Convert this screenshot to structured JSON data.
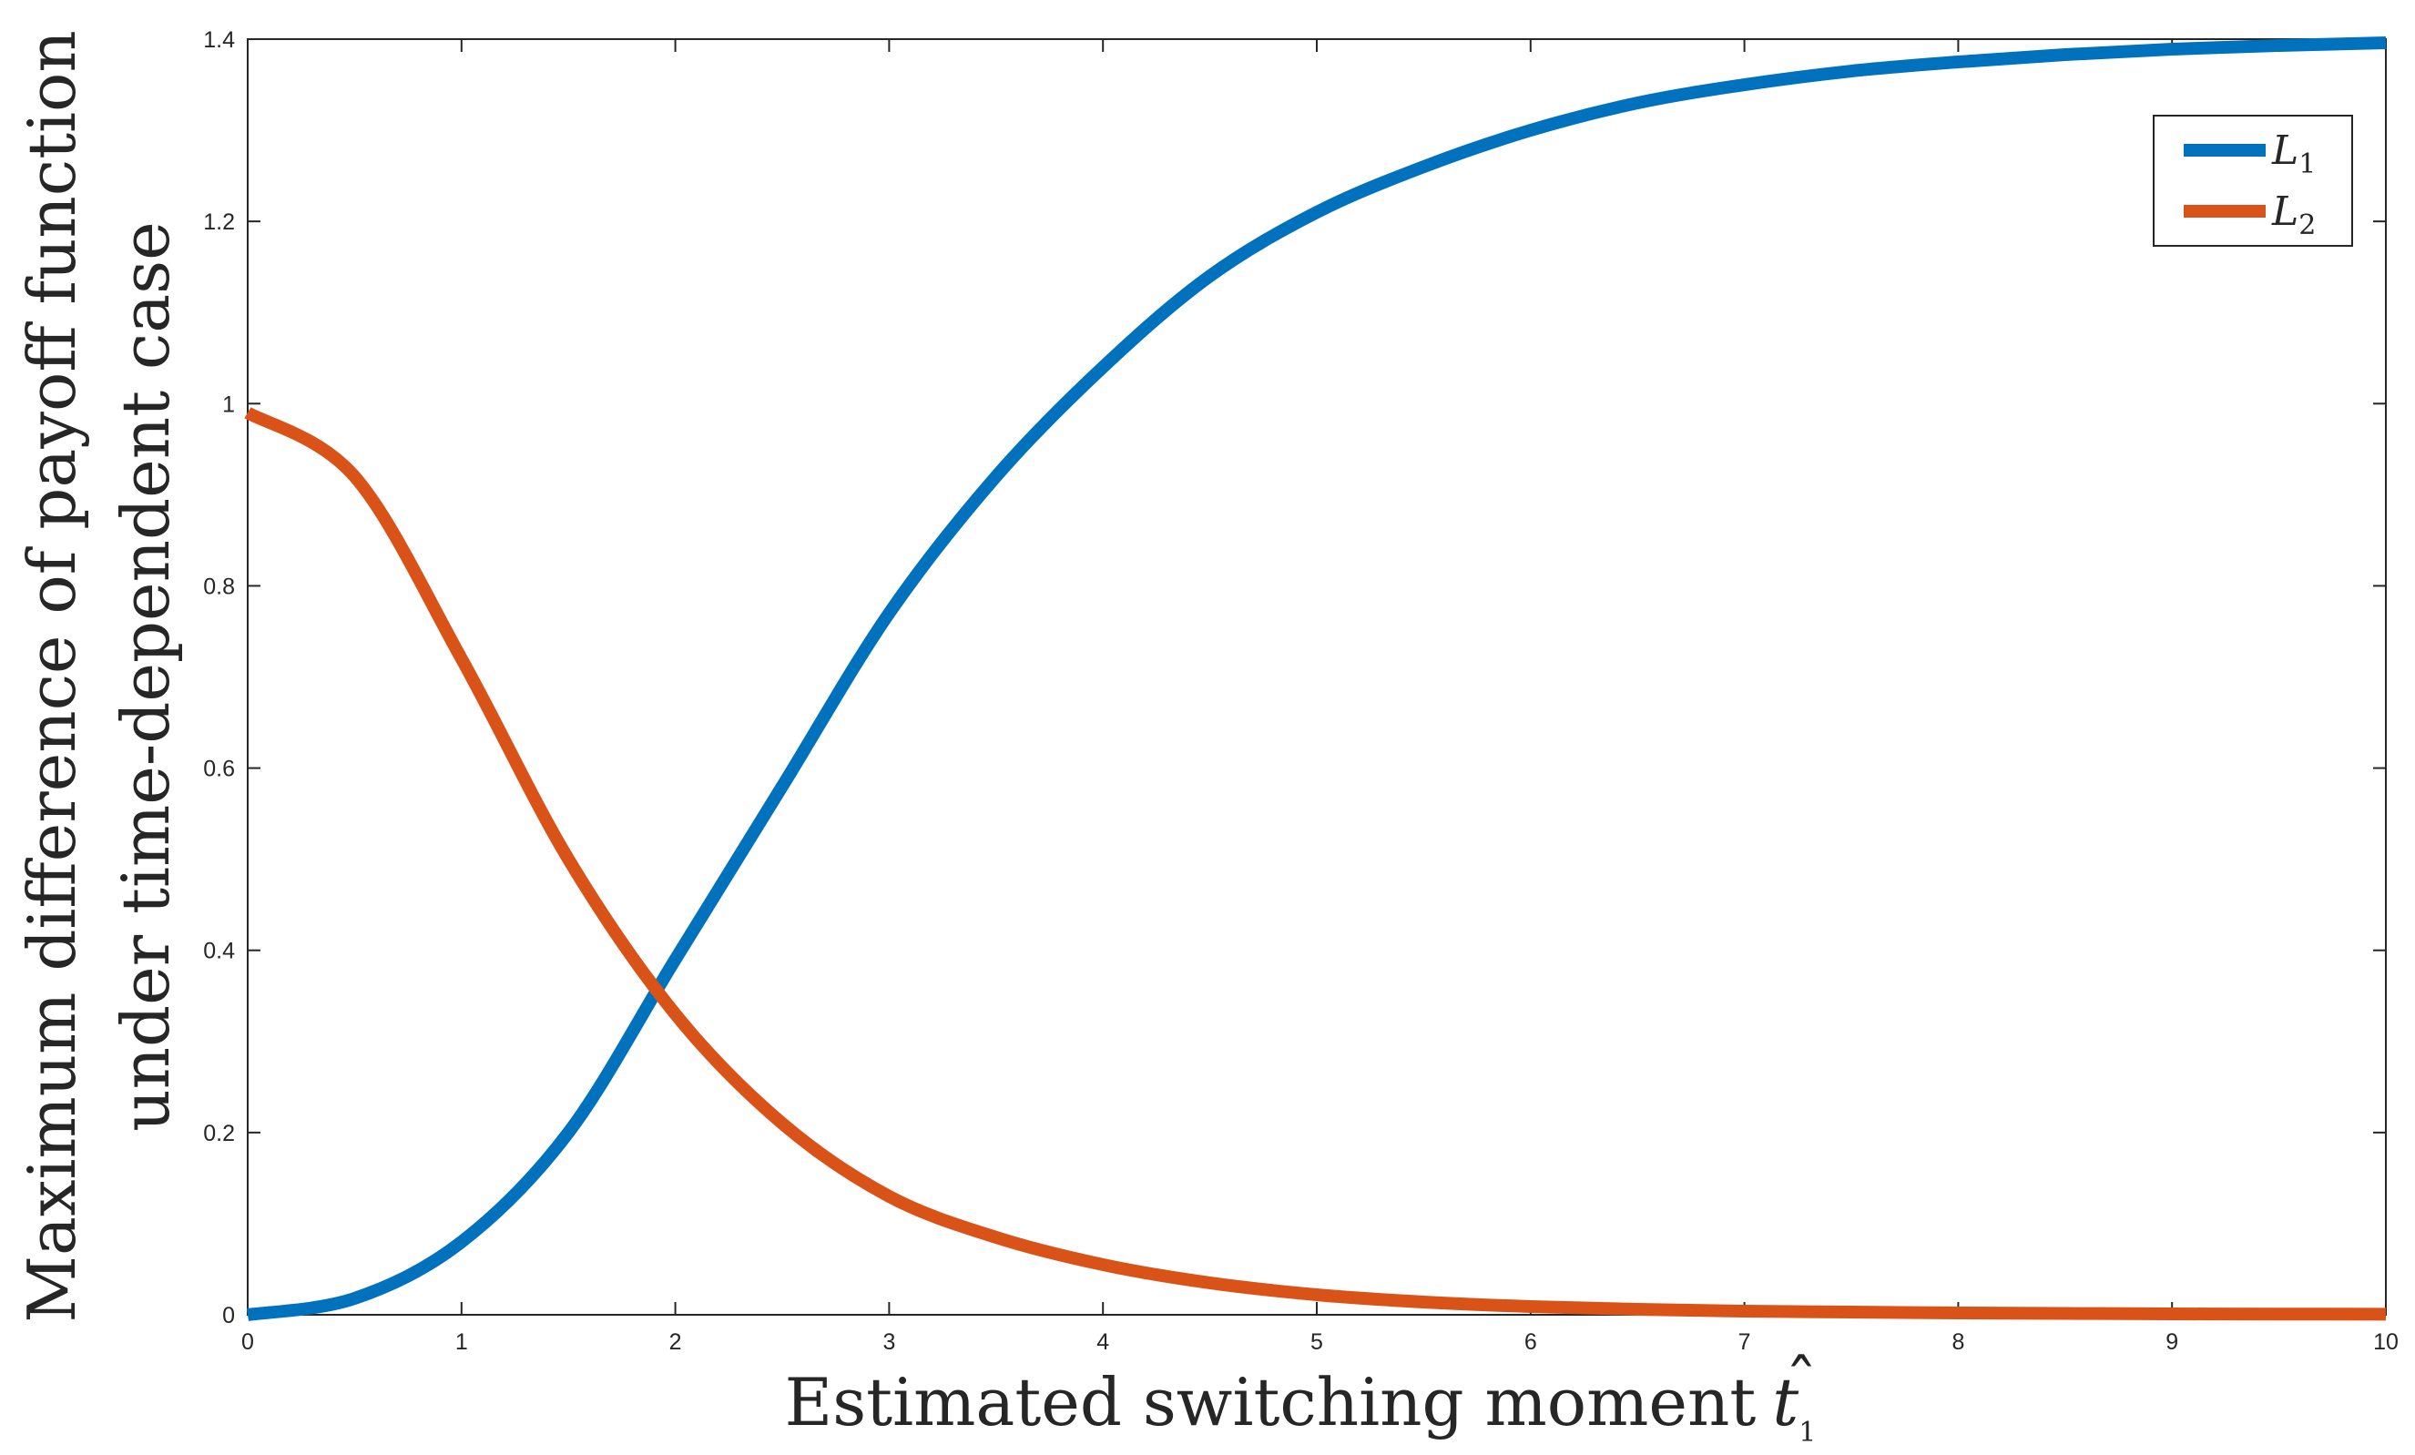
{
  "chart_data": {
    "type": "line",
    "xlabel": "Estimated switching moment",
    "xlabel_symbol": "t",
    "xlabel_hat": "ˆ",
    "xlabel_subscript": "1",
    "ylabel_line1": "Maximum difference of payoff function",
    "ylabel_line2": "under time-dependent case",
    "xlim": [
      0,
      10
    ],
    "ylim": [
      0,
      1.4
    ],
    "xticks": [
      "0",
      "1",
      "2",
      "3",
      "4",
      "5",
      "6",
      "7",
      "8",
      "9",
      "10"
    ],
    "yticks": [
      "0",
      "0.2",
      "0.4",
      "0.6",
      "0.8",
      "1",
      "1.2",
      "1.4"
    ],
    "legend_position": "top-right",
    "grid": false,
    "x": [
      0,
      0.5,
      1,
      1.5,
      2,
      2.5,
      3,
      3.5,
      4,
      4.5,
      5,
      5.5,
      6,
      6.5,
      7,
      7.5,
      8,
      8.5,
      9,
      9.5,
      10
    ],
    "series": [
      {
        "name": "L",
        "subscript": "1",
        "color": "#0072BD",
        "values": [
          0.0,
          0.018,
          0.08,
          0.2,
          0.39,
          0.58,
          0.77,
          0.92,
          1.04,
          1.14,
          1.21,
          1.26,
          1.3,
          1.33,
          1.35,
          1.365,
          1.375,
          1.383,
          1.389,
          1.393,
          1.396
        ]
      },
      {
        "name": "L",
        "subscript": "2",
        "color": "#D95319",
        "values": [
          0.99,
          0.92,
          0.72,
          0.5,
          0.33,
          0.21,
          0.13,
          0.085,
          0.055,
          0.035,
          0.022,
          0.014,
          0.009,
          0.006,
          0.004,
          0.003,
          0.002,
          0.0015,
          0.001,
          0.0008,
          0.0006
        ]
      }
    ]
  }
}
